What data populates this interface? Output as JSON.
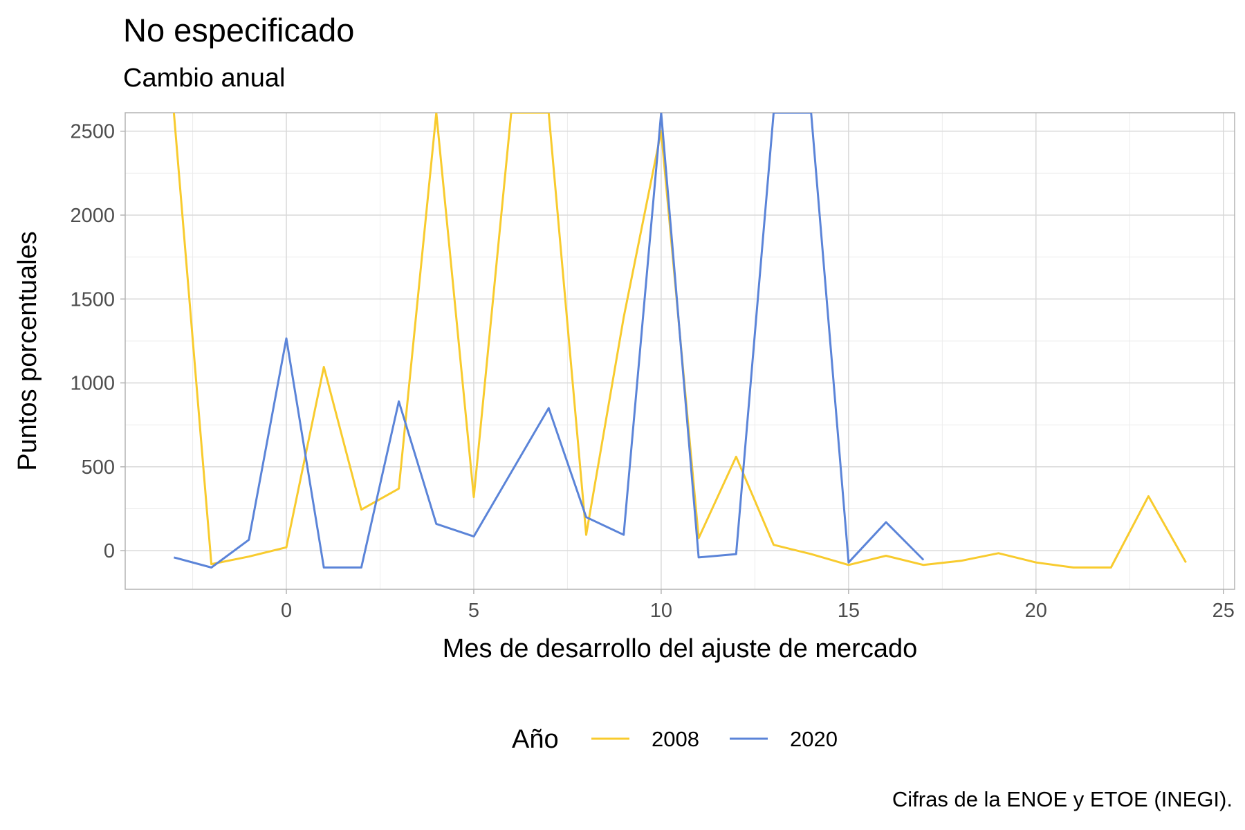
{
  "chart_data": {
    "type": "line",
    "title": "No especificado",
    "subtitle": "Cambio anual",
    "xlabel": "Mes de desarrollo del ajuste de mercado",
    "ylabel": "Puntos porcentuales",
    "caption": "Cifras de la ENOE y ETOE (INEGI).",
    "xlim": [
      -4.3,
      25.3
    ],
    "ylim": [
      -230,
      2610
    ],
    "x_ticks": [
      0,
      5,
      10,
      15,
      20,
      25
    ],
    "y_ticks": [
      0,
      500,
      1000,
      1500,
      2000,
      2500
    ],
    "grid": true,
    "legend": {
      "title": "Año",
      "position": "bottom"
    },
    "series": [
      {
        "name": "2008",
        "color": "#F8CB2E",
        "points": [
          [
            -3,
            2610
          ],
          [
            -2,
            -80
          ],
          [
            -1,
            -35
          ],
          [
            0,
            20
          ],
          [
            1,
            1095
          ],
          [
            2,
            245
          ],
          [
            3,
            370
          ],
          [
            4,
            2610
          ],
          [
            5,
            320
          ],
          [
            6,
            2610
          ],
          [
            7,
            2610
          ],
          [
            8,
            95
          ],
          [
            9,
            1390
          ],
          [
            10,
            2500
          ],
          [
            11,
            75
          ],
          [
            12,
            560
          ],
          [
            13,
            35
          ],
          [
            14,
            -20
          ],
          [
            15,
            -85
          ],
          [
            16,
            -30
          ],
          [
            17,
            -85
          ],
          [
            18,
            -60
          ],
          [
            19,
            -15
          ],
          [
            20,
            -70
          ],
          [
            21,
            -100
          ],
          [
            22,
            -100
          ],
          [
            23,
            325
          ],
          [
            24,
            -70
          ]
        ]
      },
      {
        "name": "2020",
        "color": "#5B84D8",
        "points": [
          [
            -3,
            -40
          ],
          [
            -2,
            -100
          ],
          [
            -1,
            65
          ],
          [
            0,
            1265
          ],
          [
            1,
            -100
          ],
          [
            2,
            -100
          ],
          [
            3,
            890
          ],
          [
            4,
            160
          ],
          [
            5,
            85
          ],
          [
            7,
            850
          ],
          [
            8,
            200
          ],
          [
            9,
            95
          ],
          [
            10,
            2610
          ],
          [
            11,
            -40
          ],
          [
            12,
            -20
          ],
          [
            13,
            2610
          ],
          [
            14,
            2610
          ],
          [
            15,
            -70
          ],
          [
            16,
            170
          ],
          [
            17,
            -55
          ]
        ]
      }
    ]
  }
}
